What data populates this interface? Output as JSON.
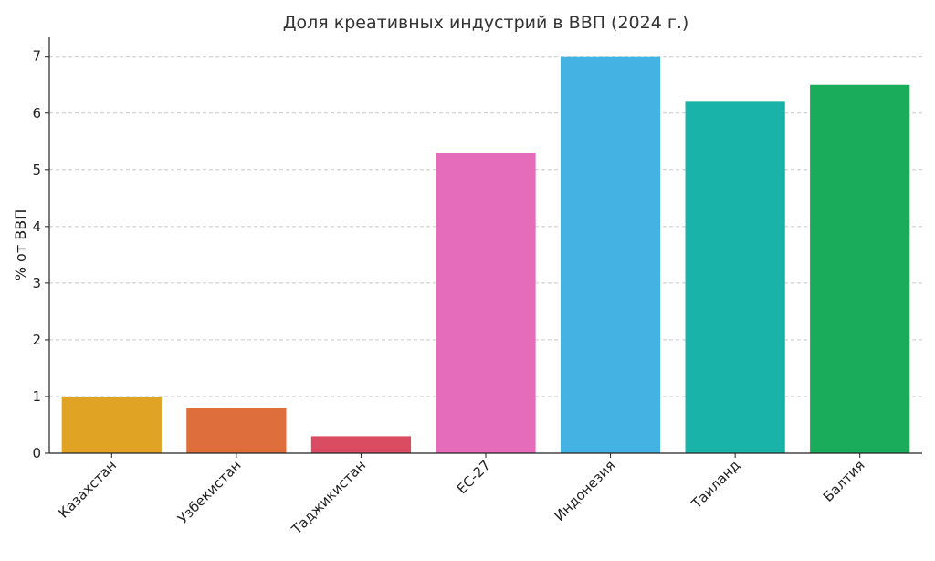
{
  "chart_data": {
    "type": "bar",
    "title": "Доля креативных индустрий в ВВП (2024 г.)",
    "xlabel": "",
    "ylabel": "% от ВВП",
    "ylim": [
      0,
      7.35
    ],
    "yticks": [
      0,
      1,
      2,
      3,
      4,
      5,
      6,
      7
    ],
    "grid": true,
    "categories": [
      "Казахстан",
      "Узбекистан",
      "Таджикистан",
      "ЕС-27",
      "Индонезия",
      "Таиланд",
      "Балтия"
    ],
    "values": [
      1.0,
      0.8,
      0.3,
      5.3,
      7.0,
      6.2,
      6.5
    ],
    "colors": [
      "#E0A323",
      "#DE6F3D",
      "#DA4C62",
      "#E56BBB",
      "#44B3E3",
      "#1AB3A9",
      "#1AAB5B"
    ]
  }
}
